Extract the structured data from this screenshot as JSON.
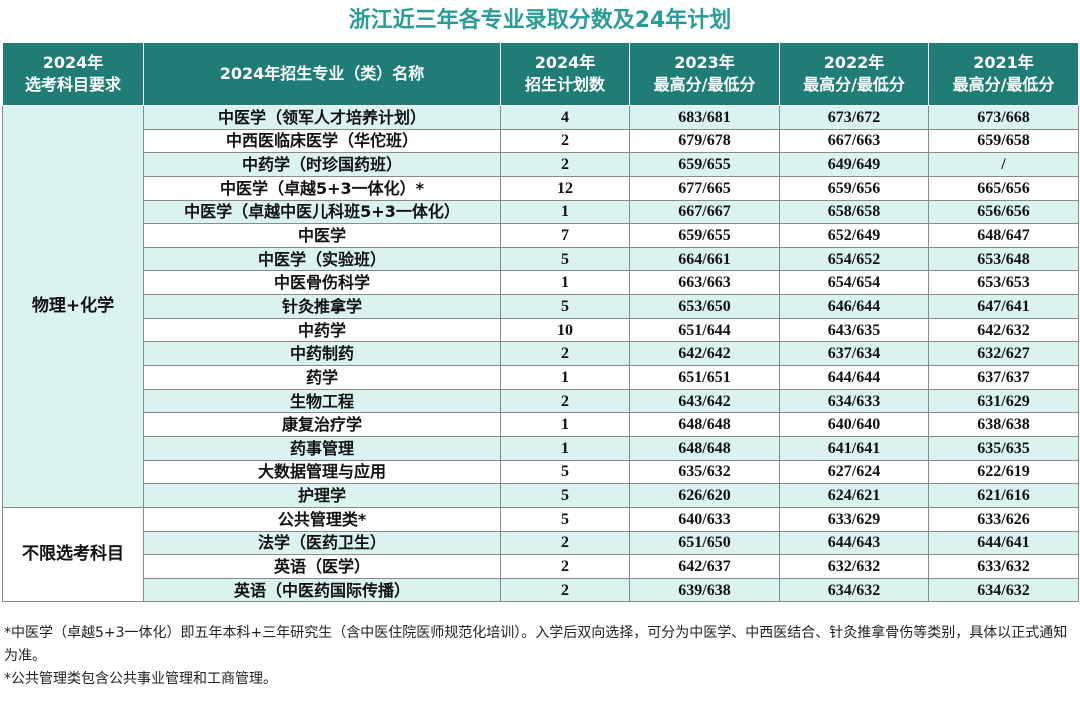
{
  "title": "浙江近三年各专业录取分数及24年计划",
  "headers": {
    "subject_req": [
      "2024年",
      "选考科目要求"
    ],
    "major": "2024年招生专业（类）名称",
    "plan": [
      "2024年",
      "招生计划数"
    ],
    "y2023": [
      "2023年",
      "最高分/最低分"
    ],
    "y2022": [
      "2022年",
      "最高分/最低分"
    ],
    "y2021": [
      "2021年",
      "最高分/最低分"
    ]
  },
  "groups": [
    {
      "label": "物理+化学",
      "rows": [
        {
          "major": "中医学（领军人才培养计划）",
          "plan": "4",
          "y2023": "683/681",
          "y2022": "673/672",
          "y2021": "673/668"
        },
        {
          "major": "中西医临床医学（华佗班）",
          "plan": "2",
          "y2023": "679/678",
          "y2022": "667/663",
          "y2021": "659/658"
        },
        {
          "major": "中药学（时珍国药班）",
          "plan": "2",
          "y2023": "659/655",
          "y2022": "649/649",
          "y2021": "/"
        },
        {
          "major": "中医学（卓越5+3一体化）*",
          "plan": "12",
          "y2023": "677/665",
          "y2022": "659/656",
          "y2021": "665/656"
        },
        {
          "major": "中医学（卓越中医儿科班5+3一体化）",
          "plan": "1",
          "y2023": "667/667",
          "y2022": "658/658",
          "y2021": "656/656"
        },
        {
          "major": "中医学",
          "plan": "7",
          "y2023": "659/655",
          "y2022": "652/649",
          "y2021": "648/647"
        },
        {
          "major": "中医学（实验班）",
          "plan": "5",
          "y2023": "664/661",
          "y2022": "654/652",
          "y2021": "653/648"
        },
        {
          "major": "中医骨伤科学",
          "plan": "1",
          "y2023": "663/663",
          "y2022": "654/654",
          "y2021": "653/653"
        },
        {
          "major": "针灸推拿学",
          "plan": "5",
          "y2023": "653/650",
          "y2022": "646/644",
          "y2021": "647/641"
        },
        {
          "major": "中药学",
          "plan": "10",
          "y2023": "651/644",
          "y2022": "643/635",
          "y2021": "642/632"
        },
        {
          "major": "中药制药",
          "plan": "2",
          "y2023": "642/642",
          "y2022": "637/634",
          "y2021": "632/627"
        },
        {
          "major": "药学",
          "plan": "1",
          "y2023": "651/651",
          "y2022": "644/644",
          "y2021": "637/637"
        },
        {
          "major": "生物工程",
          "plan": "2",
          "y2023": "643/642",
          "y2022": "634/633",
          "y2021": "631/629"
        },
        {
          "major": "康复治疗学",
          "plan": "1",
          "y2023": "648/648",
          "y2022": "640/640",
          "y2021": "638/638"
        },
        {
          "major": "药事管理",
          "plan": "1",
          "y2023": "648/648",
          "y2022": "641/641",
          "y2021": "635/635"
        },
        {
          "major": "大数据管理与应用",
          "plan": "5",
          "y2023": "635/632",
          "y2022": "627/624",
          "y2021": "622/619"
        },
        {
          "major": "护理学",
          "plan": "5",
          "y2023": "626/620",
          "y2022": "624/621",
          "y2021": "621/616"
        }
      ]
    },
    {
      "label": "不限选考科目",
      "rows": [
        {
          "major": "公共管理类*",
          "plan": "5",
          "y2023": "640/633",
          "y2022": "633/629",
          "y2021": "633/626"
        },
        {
          "major": "法学（医药卫生）",
          "plan": "2",
          "y2023": "651/650",
          "y2022": "644/643",
          "y2021": "644/641"
        },
        {
          "major": "英语（医学）",
          "plan": "2",
          "y2023": "642/637",
          "y2022": "632/632",
          "y2021": "633/632"
        },
        {
          "major": "英语（中医药国际传播）",
          "plan": "2",
          "y2023": "639/638",
          "y2022": "634/632",
          "y2021": "634/632"
        }
      ]
    }
  ],
  "notes": [
    "*中医学（卓越5+3一体化）即五年本科+三年研究生（含中医住院医师规范化培训）。入学后双向选择，可分为中医学、中西医结合、针灸推拿骨伤等类别，具体以正式通知为准。",
    "*公共管理类包含公共事业管理和工商管理。"
  ]
}
